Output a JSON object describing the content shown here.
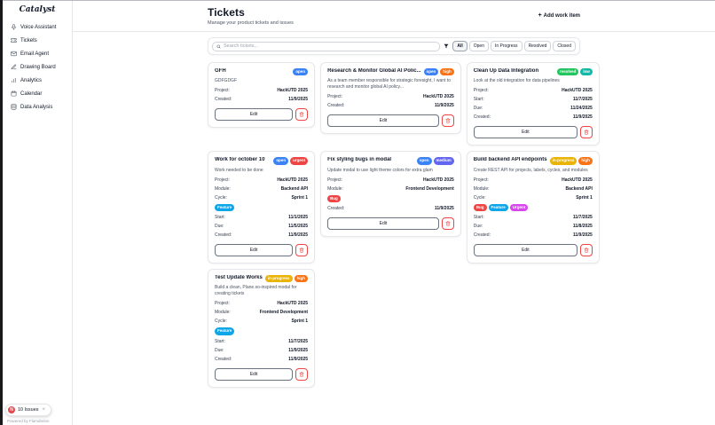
{
  "app": {
    "logo_text": "Catalyst"
  },
  "sidebar": {
    "items": [
      {
        "label": "Voice Assistant",
        "icon": "microphone-icon"
      },
      {
        "label": "Tickets",
        "icon": "ticket-icon"
      },
      {
        "label": "Email Agent",
        "icon": "mail-icon"
      },
      {
        "label": "Drawing Board",
        "icon": "pencil-icon"
      },
      {
        "label": "Analytics",
        "icon": "bar-chart-icon"
      },
      {
        "label": "Calendar",
        "icon": "calendar-icon"
      },
      {
        "label": "Data Analysis",
        "icon": "database-icon"
      }
    ]
  },
  "dev_badge": {
    "logo_letter": "N",
    "text": "10 Issues",
    "close": "×"
  },
  "footer_note": "Powered by Flamdrelon",
  "header": {
    "title": "Tickets",
    "subtitle": "Manage your product tickets and issues",
    "add_button_icon": "+",
    "add_button_label": "Add work item"
  },
  "toolbar": {
    "search_placeholder": "Search tickets...",
    "filters": [
      "All",
      "Open",
      "In Progress",
      "Resolved",
      "Closed"
    ],
    "active_filter": "All"
  },
  "card_actions": {
    "edit_label": "Edit"
  },
  "colors": {
    "status_open": "#3b82f6",
    "status_in_progress": "#eab308",
    "status_resolved": "#22c55e",
    "priority_high": "#f97316",
    "priority_medium": "#6366f1",
    "priority_low": "#14b8a6",
    "priority_urgent": "#ef4444",
    "label_feature": "#0ea5e9",
    "label_bug": "#ef4444",
    "label_urgent": "#d946ef",
    "danger": "#ef4444"
  },
  "cards": [
    {
      "title": "GFH",
      "badges": [
        {
          "text": "open",
          "color": "#3b82f6"
        }
      ],
      "description": "GDFGDGF",
      "rows": [
        {
          "type": "field",
          "label": "Project:",
          "value": "HackUTD 2025"
        },
        {
          "type": "field",
          "label": "Created:",
          "value": "11/9/2025"
        }
      ]
    },
    {
      "title": "Research & Monitor Global AI Polic...",
      "badges": [
        {
          "text": "open",
          "color": "#3b82f6"
        },
        {
          "text": "high",
          "color": "#f97316"
        }
      ],
      "description": "As a team member responsible for strategic foresight, I want to research and monitor global AI policy...",
      "rows": [
        {
          "type": "field",
          "label": "Project:",
          "value": "HackUTD 2025"
        },
        {
          "type": "field",
          "label": "Created:",
          "value": "11/9/2025"
        }
      ]
    },
    {
      "title": "Clean Up Data Integration",
      "badges": [
        {
          "text": "resolved",
          "color": "#22c55e"
        },
        {
          "text": "low",
          "color": "#14b8a6"
        }
      ],
      "description": "Look at the old integration for data pipelines",
      "rows": [
        {
          "type": "field",
          "label": "Project:",
          "value": "HackUTD 2025"
        },
        {
          "type": "field",
          "label": "Start:",
          "value": "11/7/2025"
        },
        {
          "type": "field",
          "label": "Due:",
          "value": "11/24/2025"
        },
        {
          "type": "field",
          "label": "Created:",
          "value": "11/9/2025"
        }
      ]
    },
    {
      "title": "Work for october 10",
      "badges": [
        {
          "text": "open",
          "color": "#3b82f6"
        },
        {
          "text": "urgent",
          "color": "#ef4444"
        }
      ],
      "description": "Work needed to be done",
      "rows": [
        {
          "type": "field",
          "label": "Project:",
          "value": "HackUTD 2025"
        },
        {
          "type": "field",
          "label": "Module:",
          "value": "Backend API"
        },
        {
          "type": "field",
          "label": "Cycle:",
          "value": "Sprint 1"
        },
        {
          "type": "labels",
          "items": [
            {
              "text": "Feature",
              "color": "#0ea5e9"
            }
          ]
        },
        {
          "type": "field",
          "label": "Start:",
          "value": "11/1/2025"
        },
        {
          "type": "field",
          "label": "Due:",
          "value": "11/5/2025"
        },
        {
          "type": "field",
          "label": "Created:",
          "value": "11/9/2025"
        }
      ]
    },
    {
      "title": "Fix styling bugs in modal",
      "badges": [
        {
          "text": "open",
          "color": "#3b82f6"
        },
        {
          "text": "medium",
          "color": "#6366f1"
        }
      ],
      "description": "Update modal to use light theme colors for extra glam",
      "rows": [
        {
          "type": "field",
          "label": "Project:",
          "value": "HackUTD 2025"
        },
        {
          "type": "field",
          "label": "Module:",
          "value": "Frontend Development"
        },
        {
          "type": "labels",
          "items": [
            {
              "text": "Bug",
              "color": "#ef4444"
            }
          ]
        },
        {
          "type": "field",
          "label": "Created:",
          "value": "11/9/2025"
        }
      ]
    },
    {
      "title": "Build backend API endpoints",
      "badges": [
        {
          "text": "in-progress",
          "color": "#eab308"
        },
        {
          "text": "high",
          "color": "#f97316"
        }
      ],
      "description": "Create REST API for projects, labels, cycles, and modules",
      "rows": [
        {
          "type": "field",
          "label": "Project:",
          "value": "HackUTD 2025"
        },
        {
          "type": "field",
          "label": "Module:",
          "value": "Backend API"
        },
        {
          "type": "field",
          "label": "Cycle:",
          "value": "Sprint 1"
        },
        {
          "type": "labels",
          "items": [
            {
              "text": "Bug",
              "color": "#ef4444"
            },
            {
              "text": "Feature",
              "color": "#0ea5e9"
            },
            {
              "text": "Urgent",
              "color": "#d946ef"
            }
          ]
        },
        {
          "type": "field",
          "label": "Start:",
          "value": "11/7/2025"
        },
        {
          "type": "field",
          "label": "Due:",
          "value": "11/8/2025"
        },
        {
          "type": "field",
          "label": "Created:",
          "value": "11/9/2025"
        }
      ]
    },
    {
      "title": "Test Update Works",
      "badges": [
        {
          "text": "in-progress",
          "color": "#eab308"
        },
        {
          "text": "high",
          "color": "#f97316"
        }
      ],
      "description": "Build a clean, Plane.so-inspired modal for creating tickets",
      "rows": [
        {
          "type": "field",
          "label": "Project:",
          "value": "HackUTD 2025"
        },
        {
          "type": "field",
          "label": "Module:",
          "value": "Frontend Development"
        },
        {
          "type": "field",
          "label": "Cycle:",
          "value": "Sprint 1"
        },
        {
          "type": "labels",
          "items": [
            {
              "text": "Feature",
              "color": "#0ea5e9"
            }
          ]
        },
        {
          "type": "field",
          "label": "Start:",
          "value": "11/7/2025"
        },
        {
          "type": "field",
          "label": "Due:",
          "value": "11/9/2025"
        },
        {
          "type": "field",
          "label": "Created:",
          "value": "11/9/2025"
        }
      ]
    }
  ]
}
